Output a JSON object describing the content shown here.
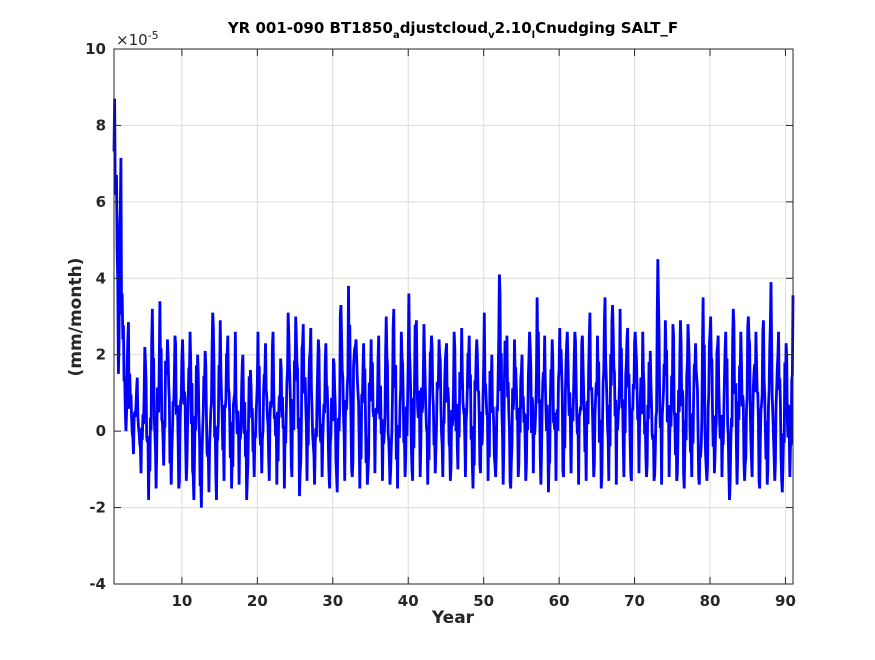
{
  "chart_data": {
    "type": "line",
    "title_parts": {
      "t1": "YR 001-090 BT1850",
      "s1": "a",
      "t2": "djustcloud",
      "s2": "v",
      "t3": "2.10",
      "s3": "l",
      "t4": "Cnudging SALT_F"
    },
    "xlabel": "Year",
    "ylabel": "(mm/month)",
    "y_exponent_label": "×10",
    "y_exponent_power": "-5",
    "xlim": [
      1,
      91
    ],
    "ylim": [
      -4,
      10
    ],
    "xticks": [
      10,
      20,
      30,
      40,
      50,
      60,
      70,
      80,
      90
    ],
    "yticks": [
      -4,
      -2,
      0,
      2,
      4,
      6,
      8,
      10
    ],
    "grid": true,
    "line_color": "#0000ff",
    "series": [
      {
        "monthly": true,
        "peaks_by_year": [
          8.7,
          3.6,
          1.5,
          1.4,
          2.2,
          3.2,
          3.4,
          2.4,
          2.5,
          2.4,
          2.6,
          2.0,
          2.1,
          3.1,
          2.9,
          2.5,
          2.6,
          2.0,
          1.6,
          2.6,
          2.3,
          2.6,
          1.9,
          3.1,
          3.0,
          2.8,
          2.7,
          2.4,
          2.3,
          1.9,
          3.3,
          3.8,
          2.4,
          2.3,
          2.4,
          2.5,
          3.0,
          3.2,
          2.6,
          3.6,
          2.9,
          2.8,
          2.5,
          2.4,
          2.3,
          2.6,
          2.7,
          2.5,
          2.4,
          3.1,
          2.0,
          4.1,
          2.5,
          2.4,
          2.0,
          2.6,
          3.5,
          2.5,
          2.4,
          2.7,
          2.6,
          2.6,
          2.5,
          3.1,
          2.5,
          3.5,
          3.3,
          3.2,
          2.7,
          2.6,
          2.6,
          2.1,
          4.5,
          2.9,
          2.8,
          2.9,
          2.8,
          2.3,
          3.5,
          3.0,
          2.5,
          2.6,
          3.2,
          2.6,
          3.0,
          2.6,
          2.9,
          3.9,
          2.6,
          2.3,
          3.8
        ],
        "troughs_by_year": [
          1.5,
          0.0,
          -0.6,
          -1.1,
          -1.8,
          -1.5,
          -0.9,
          -1.4,
          -1.5,
          -1.3,
          -1.8,
          -2.0,
          -1.6,
          -1.8,
          -1.3,
          -1.5,
          -1.4,
          -1.8,
          -1.2,
          -1.1,
          -1.3,
          -1.4,
          -1.5,
          -1.2,
          -1.7,
          -1.3,
          -1.4,
          -1.2,
          -1.5,
          -1.6,
          -1.3,
          -1.2,
          -1.5,
          -1.4,
          -1.1,
          -1.3,
          -1.4,
          -1.5,
          -1.2,
          -1.3,
          -1.2,
          -1.4,
          -1.1,
          -1.2,
          -1.3,
          -1.0,
          -1.2,
          -1.5,
          -1.1,
          -1.3,
          -1.2,
          -1.4,
          -1.5,
          -1.2,
          -1.3,
          -1.1,
          -1.4,
          -1.6,
          -1.3,
          -1.2,
          -1.1,
          -1.4,
          -1.3,
          -1.2,
          -1.5,
          -1.3,
          -1.4,
          -1.2,
          -1.3,
          -1.1,
          -1.2,
          -1.3,
          -1.4,
          -1.2,
          -1.3,
          -1.5,
          -1.2,
          -1.4,
          -1.3,
          -1.1,
          -1.2,
          -1.8,
          -1.4,
          -1.3,
          -1.2,
          -1.5,
          -1.4,
          -1.3,
          -1.6,
          -1.2,
          -1.1
        ]
      }
    ]
  }
}
